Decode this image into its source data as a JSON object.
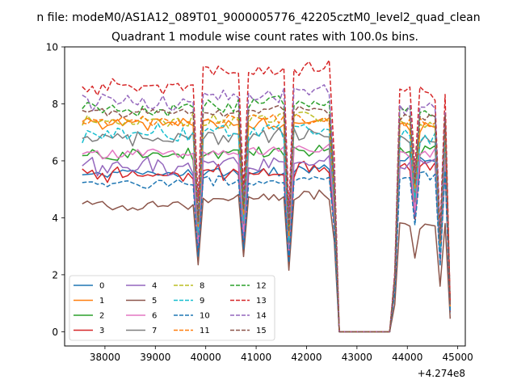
{
  "chart_data": {
    "type": "line",
    "suptitle": "n file: modeM0/AS1A12_089T01_9000005776_42205cztM0_level2_quad_clean",
    "title": "Quadrant 1 module wise count rates with 100.0s bins.",
    "x_offset_label": "+4.274e8",
    "xlabel": "",
    "ylabel": "",
    "xlim": [
      37200,
      45150
    ],
    "ylim": [
      -0.5,
      10
    ],
    "x_ticks": [
      {
        "value": 38000,
        "label": "38000"
      },
      {
        "value": 39000,
        "label": "39000"
      },
      {
        "value": 40000,
        "label": "40000"
      },
      {
        "value": 41000,
        "label": "41000"
      },
      {
        "value": 42000,
        "label": "42000"
      },
      {
        "value": 43000,
        "label": "43000"
      },
      {
        "value": 44000,
        "label": "44000"
      },
      {
        "value": 45000,
        "label": "45000"
      }
    ],
    "y_ticks": [
      {
        "value": 0,
        "label": "0"
      },
      {
        "value": 2,
        "label": "2"
      },
      {
        "value": 4,
        "label": "4"
      },
      {
        "value": 6,
        "label": "6"
      },
      {
        "value": 8,
        "label": "8"
      },
      {
        "value": 10,
        "label": "10"
      }
    ],
    "grid": false,
    "legend": {
      "placement": "lower-left",
      "columns": 4
    },
    "segments": [
      {
        "x_start": 37550,
        "x_end": 39750,
        "dx": 100
      },
      {
        "x_start": 39850,
        "x_end": 40650,
        "dx": 100
      },
      {
        "x_start": 40750,
        "x_end": 41550,
        "dx": 100
      },
      {
        "x_start": 41650,
        "x_end": 42550,
        "dx": 100
      },
      {
        "x_start": 42650,
        "x_end": 43650,
        "dx": 100
      },
      {
        "x_start": 43750,
        "x_end": 44850,
        "dx": 100
      }
    ],
    "dips": [
      {
        "x": 39850,
        "factor": 0.5
      },
      {
        "x": 40750,
        "factor": 0.55
      },
      {
        "x": 41650,
        "factor": 0.45
      },
      {
        "x": 44150,
        "factor": 0.68
      },
      {
        "x": 44650,
        "factor": 0.42
      }
    ],
    "ramp_down": [
      {
        "x": 42550,
        "factor": 0.66
      }
    ],
    "zero_range": [
      42650,
      43650
    ],
    "ramp_up": [
      {
        "x": 43750,
        "factor": 0.25
      }
    ],
    "end_point": {
      "x": 44850,
      "factor": 0.12
    },
    "series": [
      {
        "name": "0",
        "color": "#1f77b4",
        "dashed": false,
        "levels": [
          5.6,
          5.6,
          5.6,
          5.7,
          5.7,
          6.0
        ]
      },
      {
        "name": "1",
        "color": "#ff7f0e",
        "dashed": false,
        "levels": [
          7.3,
          7.3,
          7.3,
          7.4,
          7.4,
          7.2
        ]
      },
      {
        "name": "2",
        "color": "#2ca02c",
        "dashed": false,
        "levels": [
          6.2,
          6.3,
          6.3,
          6.4,
          6.4,
          6.4
        ]
      },
      {
        "name": "3",
        "color": "#d62728",
        "dashed": false,
        "levels": [
          5.5,
          5.6,
          5.6,
          5.7,
          5.7,
          5.8
        ]
      },
      {
        "name": "4",
        "color": "#9467bd",
        "dashed": false,
        "levels": [
          5.8,
          5.9,
          5.9,
          6.0,
          6.0,
          6.0
        ]
      },
      {
        "name": "5",
        "color": "#8c564b",
        "dashed": false,
        "levels": [
          4.4,
          4.7,
          4.8,
          4.8,
          4.8,
          3.8
        ]
      },
      {
        "name": "6",
        "color": "#e377c2",
        "dashed": false,
        "levels": [
          6.3,
          6.3,
          6.4,
          6.4,
          6.4,
          6.3
        ]
      },
      {
        "name": "7",
        "color": "#7f7f7f",
        "dashed": false,
        "levels": [
          6.8,
          6.8,
          6.9,
          6.9,
          6.9,
          6.7
        ]
      },
      {
        "name": "8",
        "color": "#bcbd22",
        "dashed": true,
        "levels": [
          7.4,
          7.4,
          7.5,
          7.5,
          7.5,
          7.3
        ]
      },
      {
        "name": "9",
        "color": "#17becf",
        "dashed": true,
        "levels": [
          7.0,
          7.0,
          7.1,
          7.1,
          7.1,
          6.9
        ]
      },
      {
        "name": "10",
        "color": "#1f77b4",
        "dashed": true,
        "levels": [
          5.2,
          5.3,
          5.3,
          5.4,
          5.4,
          5.5
        ]
      },
      {
        "name": "11",
        "color": "#ff7f0e",
        "dashed": true,
        "levels": [
          7.4,
          7.4,
          7.5,
          7.5,
          7.5,
          7.4
        ]
      },
      {
        "name": "12",
        "color": "#2ca02c",
        "dashed": true,
        "levels": [
          7.8,
          7.9,
          8.1,
          8.0,
          8.0,
          7.8
        ]
      },
      {
        "name": "13",
        "color": "#d62728",
        "dashed": true,
        "levels": [
          8.6,
          9.2,
          9.1,
          9.3,
          9.3,
          8.4
        ]
      },
      {
        "name": "14",
        "color": "#9467bd",
        "dashed": true,
        "levels": [
          8.1,
          8.2,
          8.3,
          8.5,
          8.5,
          7.9
        ]
      },
      {
        "name": "15",
        "color": "#8c564b",
        "dashed": true,
        "levels": [
          7.7,
          7.7,
          7.8,
          7.8,
          7.8,
          7.6
        ]
      }
    ]
  }
}
